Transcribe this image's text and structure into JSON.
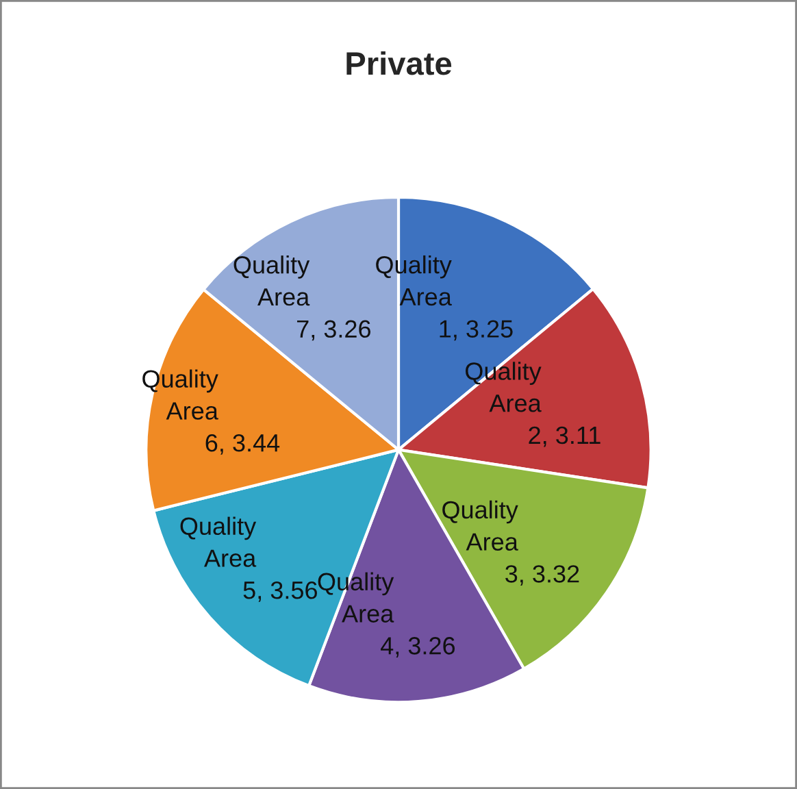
{
  "chart_data": {
    "type": "pie",
    "title": "Private",
    "categories": [
      "Quality Area 1",
      "Quality Area 2",
      "Quality Area 3",
      "Quality Area 4",
      "Quality Area 5",
      "Quality Area 6",
      "Quality Area 7"
    ],
    "values": [
      3.25,
      3.11,
      3.32,
      3.26,
      3.56,
      3.44,
      3.26
    ],
    "colors": [
      "#3d72c0",
      "#c0393b",
      "#90b840",
      "#7252a0",
      "#31a7c8",
      "#f08a24",
      "#95abd8"
    ],
    "value_labels": [
      ", 3.25",
      ", 3.11",
      ", 3.32",
      ", 3.26",
      ", 3.56",
      ", 3.44",
      ", 3.26"
    ],
    "legend": false
  }
}
